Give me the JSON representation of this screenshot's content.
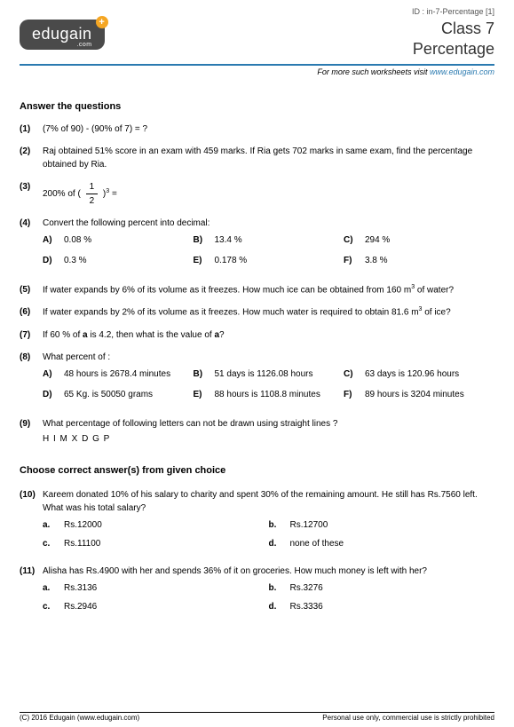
{
  "meta": {
    "id_line": "ID : in-7-Percentage [1]",
    "class_line": "Class 7",
    "topic_line": "Percentage",
    "visit_prefix": "For more such worksheets visit ",
    "visit_link": "www.edugain.com"
  },
  "logo": {
    "main": "edugain",
    "sub": ".com",
    "plus": "+"
  },
  "section1_title": "Answer the questions",
  "q1": {
    "num": "(1)",
    "text": "(7% of 90) - (90% of 7) = ?"
  },
  "q2": {
    "num": "(2)",
    "text": "Raj obtained 51% score in an exam with 459 marks. If Ria gets 702 marks in same exam, find the percentage obtained by Ria."
  },
  "q3": {
    "num": "(3)",
    "pre": "200% of ( ",
    "frac_n": "1",
    "frac_d": "2",
    "post": " )",
    "exp": "3",
    "tail": " ="
  },
  "q4": {
    "num": "(4)",
    "text": "Convert the following percent into decimal:",
    "a": {
      "l": "A)",
      "v": "0.08 %"
    },
    "b": {
      "l": "B)",
      "v": "13.4 %"
    },
    "c": {
      "l": "C)",
      "v": "294 %"
    },
    "d": {
      "l": "D)",
      "v": "0.3 %"
    },
    "e": {
      "l": "E)",
      "v": "0.178 %"
    },
    "f": {
      "l": "F)",
      "v": "3.8 %"
    }
  },
  "q5": {
    "num": "(5)",
    "pre": "If water expands by 6% of its volume as it freezes. How much ice can be obtained from 160 m",
    "exp": "3",
    "post": " of water?"
  },
  "q6": {
    "num": "(6)",
    "pre": "If water expands by 2% of its volume as it freezes. How much water is required to obtain 81.6 m",
    "exp": "3",
    "post": " of ice?"
  },
  "q7": {
    "num": "(7)",
    "pre": "If 60 % of ",
    "bold": "a",
    "mid": " is 4.2, then what is the value of ",
    "bold2": "a",
    "post": "?"
  },
  "q8": {
    "num": "(8)",
    "text": "What percent of :",
    "a": {
      "l": "A)",
      "v": "48 hours is 2678.4 minutes"
    },
    "b": {
      "l": "B)",
      "v": "51 days is 1126.08 hours"
    },
    "c": {
      "l": "C)",
      "v": "63 days is 120.96 hours"
    },
    "d": {
      "l": "D)",
      "v": "65 Kg. is 50050 grams"
    },
    "e": {
      "l": "E)",
      "v": "88 hours is 1108.8 minutes"
    },
    "f": {
      "l": "F)",
      "v": "89 hours is 3204 minutes"
    }
  },
  "q9": {
    "num": "(9)",
    "text": "What percentage of following letters can not be drawn using straight lines ?",
    "letters": "H I M X D G P"
  },
  "section2_title": "Choose correct answer(s) from given choice",
  "q10": {
    "num": "(10)",
    "text": "Kareem donated 10% of his salary to charity and spent 30% of the remaining amount. He still has Rs.7560 left. What was his total salary?",
    "a": {
      "l": "a.",
      "v": "Rs.12000"
    },
    "b": {
      "l": "b.",
      "v": "Rs.12700"
    },
    "c": {
      "l": "c.",
      "v": "Rs.11100"
    },
    "d": {
      "l": "d.",
      "v": "none of these"
    }
  },
  "q11": {
    "num": "(11)",
    "text": "Alisha has Rs.4900 with her and spends 36% of it on groceries. How much money is left with her?",
    "a": {
      "l": "a.",
      "v": "Rs.3136"
    },
    "b": {
      "l": "b.",
      "v": "Rs.3276"
    },
    "c": {
      "l": "c.",
      "v": "Rs.2946"
    },
    "d": {
      "l": "d.",
      "v": "Rs.3336"
    }
  },
  "footer": {
    "left": "(C) 2016 Edugain (www.edugain.com)",
    "right": "Personal use only, commercial use is strictly prohibited"
  }
}
